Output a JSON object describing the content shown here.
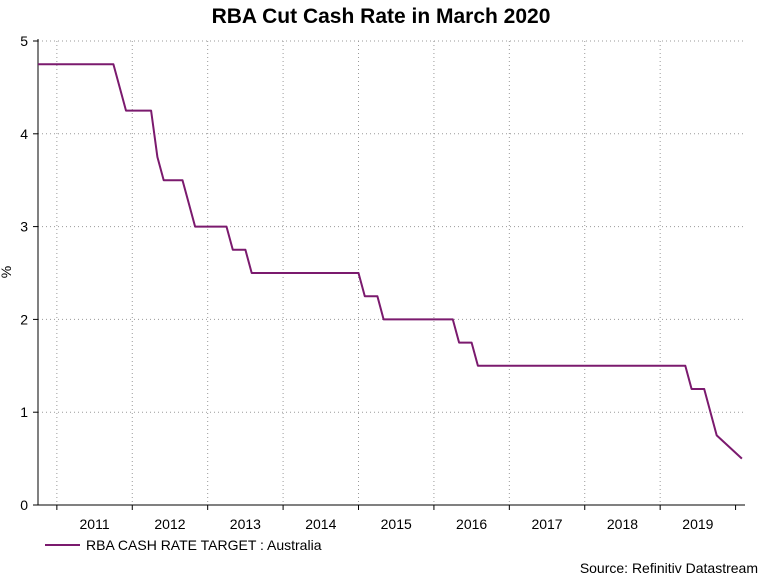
{
  "chart_data": {
    "type": "line",
    "title": "RBA Cut Cash Rate in March 2020",
    "ylabel": "%",
    "xlabel": "",
    "ylim": [
      0,
      5
    ],
    "yticks": [
      "0",
      "1",
      "2",
      "3",
      "4",
      "5"
    ],
    "x_tick_labels": [
      "2011",
      "2012",
      "2013",
      "2014",
      "2015",
      "2016",
      "2017",
      "2018",
      "2019"
    ],
    "grid": true,
    "legend_position": "bottom-left",
    "source": "Source: Refinitiv Datastream",
    "series": [
      {
        "name": "RBA CASH RATE TARGET : Australia",
        "color": "#7b1a6e",
        "x": [
          "2010-10",
          "2011-10",
          "2011-11",
          "2011-12",
          "2012-04",
          "2012-05",
          "2012-06",
          "2012-09",
          "2012-10",
          "2012-11",
          "2013-04",
          "2013-05",
          "2013-07",
          "2013-08",
          "2015-01",
          "2015-02",
          "2015-04",
          "2015-05",
          "2016-04",
          "2016-05",
          "2016-07",
          "2016-08",
          "2019-05",
          "2019-06",
          "2019-08",
          "2019-10",
          "2020-02"
        ],
        "values": [
          4.75,
          4.75,
          4.5,
          4.25,
          4.25,
          3.75,
          3.5,
          3.5,
          3.25,
          3.0,
          3.0,
          2.75,
          2.75,
          2.5,
          2.5,
          2.25,
          2.25,
          2.0,
          2.0,
          1.75,
          1.75,
          1.5,
          1.5,
          1.25,
          1.25,
          0.75,
          0.5
        ]
      }
    ]
  }
}
